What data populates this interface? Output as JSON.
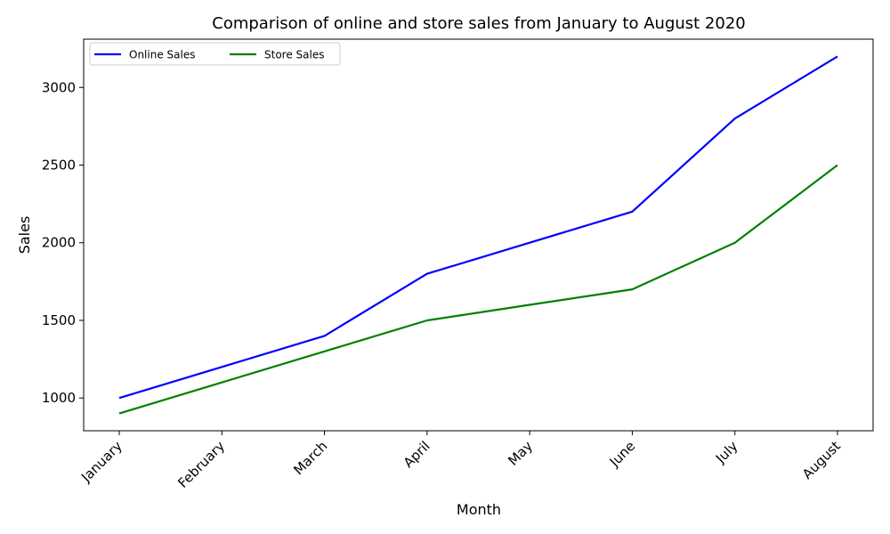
{
  "chart_data": {
    "type": "line",
    "title": "Comparison of online and store sales from January to August 2020",
    "xlabel": "Month",
    "ylabel": "Sales",
    "categories": [
      "January",
      "February",
      "March",
      "April",
      "May",
      "June",
      "July",
      "August"
    ],
    "series": [
      {
        "name": "Online Sales",
        "color": "#0000ff",
        "values": [
          1000,
          1200,
          1400,
          1800,
          2000,
          2200,
          2800,
          3200
        ]
      },
      {
        "name": "Store Sales",
        "color": "#008000",
        "values": [
          900,
          1100,
          1300,
          1500,
          1600,
          1700,
          2000,
          2500
        ]
      }
    ],
    "ylim": [
      789,
      3311
    ],
    "yticks": [
      1000,
      1500,
      2000,
      2500,
      3000
    ],
    "grid": false,
    "legend_position": "top-left"
  }
}
